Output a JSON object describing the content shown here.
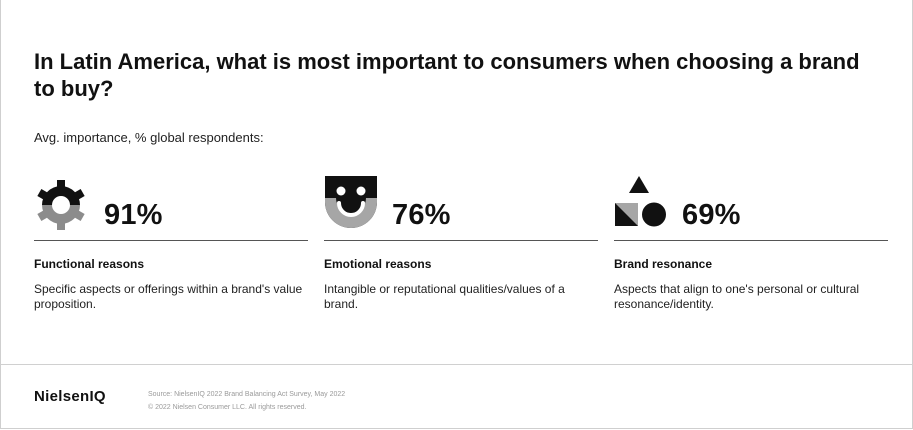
{
  "chart_data": {
    "type": "table",
    "title": "In Latin America, what is most important to consumers when choosing a brand to buy?",
    "subtitle": "Avg. importance, % global respondents:",
    "categories": [
      "Functional reasons",
      "Emotional reasons",
      "Brand resonance"
    ],
    "values": [
      91,
      76,
      69
    ],
    "value_labels": [
      "91%",
      "76%",
      "69%"
    ],
    "descriptions": [
      "Specific aspects or offerings within a brand's value proposition.",
      "Intangible or reputational qualities/values of a brand.",
      "Aspects that align to one's personal or cultural resonance/identity."
    ],
    "icons": [
      "gear-icon",
      "smiley-face-icon",
      "shapes-icon"
    ],
    "colors": {
      "dark": "#111111",
      "gray": "#8c8c8c",
      "light_gray": "#a6a6a6"
    }
  },
  "footer": {
    "brand": "NielsenIQ",
    "source": "Source: NielsenIQ 2022 Brand Balancing Act Survey, May 2022",
    "copyright": "© 2022 Nielsen Consumer LLC. All rights reserved."
  }
}
